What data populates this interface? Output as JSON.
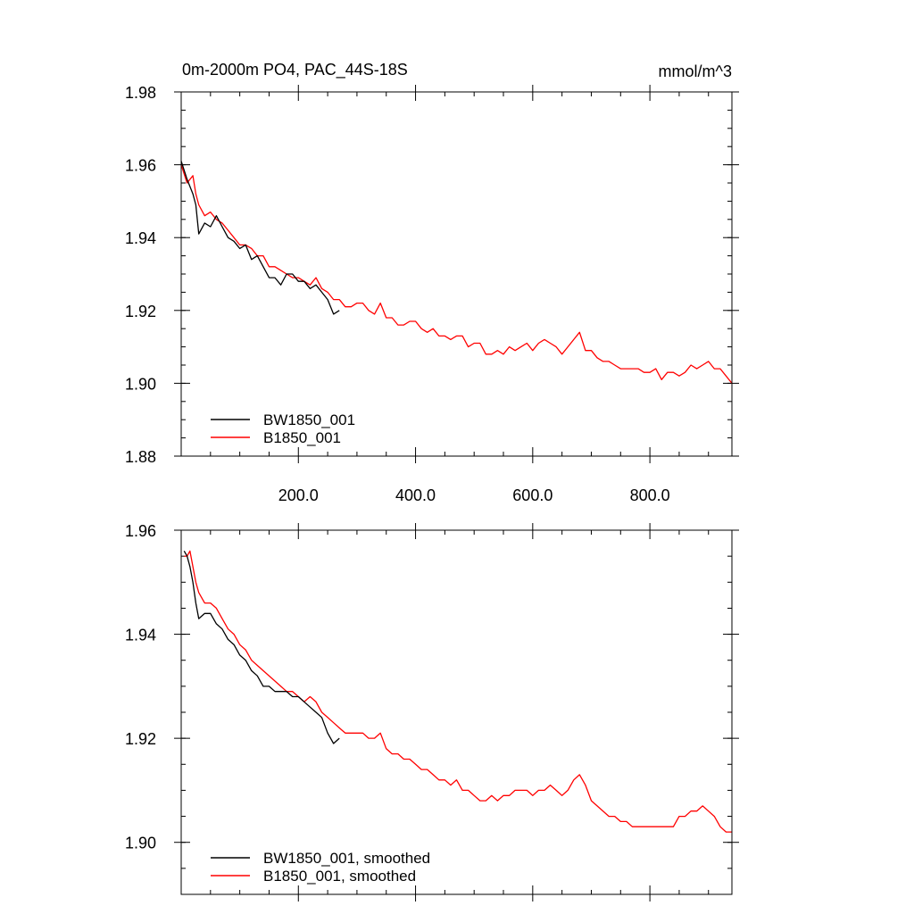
{
  "chart_data": [
    {
      "type": "line",
      "title": "0m-2000m PO4, PAC_44S-18S",
      "units": "mmol/m^3",
      "xlim": [
        0,
        940
      ],
      "ylim": [
        1.88,
        1.98
      ],
      "x_major_ticks": [
        200,
        400,
        600,
        800
      ],
      "x_tick_labels": [
        "200.0",
        "400.0",
        "600.0",
        "800.0"
      ],
      "y_major_ticks": [
        1.88,
        1.9,
        1.92,
        1.94,
        1.96,
        1.98
      ],
      "y_tick_labels": [
        "1.88",
        "1.90",
        "1.92",
        "1.94",
        "1.96",
        "1.98"
      ],
      "legend_position": "bottom-left",
      "series": [
        {
          "name": "BW1850_001",
          "color": "#000000",
          "x": [
            0,
            10,
            20,
            25,
            30,
            40,
            50,
            60,
            70,
            80,
            90,
            100,
            110,
            120,
            130,
            140,
            150,
            160,
            170,
            180,
            190,
            200,
            210,
            220,
            230,
            240,
            250,
            260,
            270
          ],
          "y": [
            1.961,
            1.956,
            1.952,
            1.949,
            1.941,
            1.944,
            1.943,
            1.946,
            1.943,
            1.94,
            1.939,
            1.937,
            1.938,
            1.934,
            1.935,
            1.932,
            1.929,
            1.929,
            1.927,
            1.93,
            1.93,
            1.928,
            1.928,
            1.926,
            1.927,
            1.925,
            1.923,
            1.919,
            1.92
          ]
        },
        {
          "name": "B1850_001",
          "color": "#ff0000",
          "x": [
            0,
            10,
            20,
            25,
            30,
            40,
            50,
            60,
            70,
            80,
            90,
            100,
            110,
            120,
            130,
            140,
            150,
            160,
            170,
            180,
            190,
            200,
            210,
            220,
            230,
            240,
            250,
            260,
            270,
            280,
            290,
            300,
            310,
            320,
            330,
            340,
            350,
            360,
            370,
            380,
            390,
            400,
            410,
            420,
            430,
            440,
            450,
            460,
            470,
            480,
            490,
            500,
            510,
            520,
            530,
            540,
            550,
            560,
            570,
            580,
            590,
            600,
            610,
            620,
            630,
            640,
            650,
            660,
            670,
            680,
            690,
            700,
            710,
            720,
            730,
            740,
            750,
            760,
            770,
            780,
            790,
            800,
            810,
            820,
            830,
            840,
            850,
            860,
            870,
            880,
            890,
            900,
            910,
            920,
            930,
            940
          ],
          "y": [
            1.96,
            1.955,
            1.957,
            1.952,
            1.949,
            1.946,
            1.947,
            1.945,
            1.944,
            1.942,
            1.94,
            1.938,
            1.938,
            1.937,
            1.935,
            1.935,
            1.932,
            1.932,
            1.931,
            1.93,
            1.929,
            1.929,
            1.928,
            1.927,
            1.929,
            1.926,
            1.925,
            1.923,
            1.923,
            1.921,
            1.921,
            1.922,
            1.922,
            1.92,
            1.919,
            1.922,
            1.918,
            1.918,
            1.916,
            1.916,
            1.917,
            1.917,
            1.915,
            1.914,
            1.915,
            1.913,
            1.913,
            1.912,
            1.913,
            1.913,
            1.91,
            1.911,
            1.911,
            1.908,
            1.908,
            1.909,
            1.908,
            1.91,
            1.909,
            1.91,
            1.911,
            1.909,
            1.911,
            1.912,
            1.911,
            1.91,
            1.908,
            1.91,
            1.912,
            1.914,
            1.909,
            1.909,
            1.907,
            1.906,
            1.906,
            1.905,
            1.904,
            1.904,
            1.904,
            1.904,
            1.903,
            1.903,
            1.904,
            1.901,
            1.903,
            1.903,
            1.902,
            1.903,
            1.905,
            1.904,
            1.905,
            1.906,
            1.904,
            1.904,
            1.902,
            1.9
          ]
        }
      ]
    },
    {
      "type": "line",
      "xlim": [
        0,
        940
      ],
      "ylim": [
        1.89,
        1.96
      ],
      "y_major_ticks": [
        1.9,
        1.92,
        1.94,
        1.96
      ],
      "y_tick_labels": [
        "1.90",
        "1.92",
        "1.94",
        "1.96"
      ],
      "x_major_ticks": [
        200,
        400,
        600,
        800
      ],
      "legend_position": "bottom-left",
      "series": [
        {
          "name": "BW1850_001, smoothed",
          "color": "#000000",
          "x": [
            5,
            10,
            15,
            20,
            25,
            30,
            40,
            50,
            60,
            70,
            80,
            90,
            100,
            110,
            120,
            130,
            140,
            150,
            160,
            170,
            180,
            190,
            200,
            210,
            220,
            230,
            240,
            250,
            260,
            270
          ],
          "y": [
            1.956,
            1.955,
            1.953,
            1.95,
            1.946,
            1.943,
            1.944,
            1.944,
            1.942,
            1.941,
            1.939,
            1.938,
            1.936,
            1.935,
            1.933,
            1.932,
            1.93,
            1.93,
            1.929,
            1.929,
            1.929,
            1.928,
            1.928,
            1.927,
            1.926,
            1.925,
            1.924,
            1.921,
            1.919,
            1.92
          ]
        },
        {
          "name": "B1850_001, smoothed",
          "color": "#ff0000",
          "x": [
            5,
            10,
            15,
            20,
            25,
            30,
            40,
            50,
            60,
            70,
            80,
            90,
            100,
            110,
            120,
            130,
            140,
            150,
            160,
            170,
            180,
            190,
            200,
            210,
            220,
            230,
            240,
            250,
            260,
            270,
            280,
            290,
            300,
            310,
            320,
            330,
            340,
            350,
            360,
            370,
            380,
            390,
            400,
            410,
            420,
            430,
            440,
            450,
            460,
            470,
            480,
            490,
            500,
            510,
            520,
            530,
            540,
            550,
            560,
            570,
            580,
            590,
            600,
            610,
            620,
            630,
            640,
            650,
            660,
            670,
            680,
            690,
            700,
            710,
            720,
            730,
            740,
            750,
            760,
            770,
            780,
            790,
            800,
            810,
            820,
            830,
            840,
            850,
            860,
            870,
            880,
            890,
            900,
            910,
            920,
            930,
            940
          ],
          "y": [
            1.955,
            1.955,
            1.956,
            1.953,
            1.95,
            1.948,
            1.946,
            1.946,
            1.945,
            1.943,
            1.941,
            1.94,
            1.938,
            1.937,
            1.935,
            1.934,
            1.933,
            1.932,
            1.931,
            1.93,
            1.929,
            1.929,
            1.928,
            1.927,
            1.928,
            1.927,
            1.925,
            1.924,
            1.923,
            1.922,
            1.921,
            1.921,
            1.921,
            1.921,
            1.92,
            1.92,
            1.921,
            1.918,
            1.917,
            1.917,
            1.916,
            1.916,
            1.915,
            1.914,
            1.914,
            1.913,
            1.912,
            1.912,
            1.911,
            1.912,
            1.91,
            1.91,
            1.909,
            1.908,
            1.908,
            1.909,
            1.908,
            1.909,
            1.909,
            1.91,
            1.91,
            1.91,
            1.909,
            1.91,
            1.91,
            1.911,
            1.91,
            1.909,
            1.91,
            1.912,
            1.913,
            1.911,
            1.908,
            1.907,
            1.906,
            1.905,
            1.905,
            1.904,
            1.904,
            1.903,
            1.903,
            1.903,
            1.903,
            1.903,
            1.903,
            1.903,
            1.903,
            1.905,
            1.905,
            1.906,
            1.906,
            1.907,
            1.906,
            1.905,
            1.903,
            1.902,
            1.902
          ]
        }
      ]
    }
  ]
}
